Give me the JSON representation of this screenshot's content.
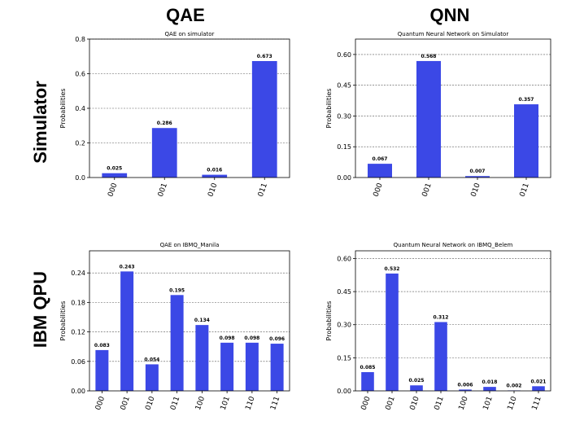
{
  "column_headers": [
    "QAE",
    "QNN"
  ],
  "row_headers": [
    "Simulator",
    "IBM QPU"
  ],
  "bar_color": "#3b48e6",
  "chart_data": [
    {
      "type": "bar",
      "title": "QAE on simulator",
      "ylabel": "Probabilities",
      "categories": [
        "000",
        "001",
        "010",
        "011"
      ],
      "values": [
        0.025,
        0.286,
        0.016,
        0.673
      ],
      "value_labels": [
        "0.025",
        "0.286",
        "0.016",
        "0.673"
      ],
      "ylim": [
        0,
        0.8
      ],
      "yticks": [
        0,
        0.2,
        0.4,
        0.6,
        0.8
      ],
      "ytick_labels": [
        "0.0",
        "0.2",
        "0.4",
        "0.6",
        "0.8"
      ],
      "grid": true
    },
    {
      "type": "bar",
      "title": "Quantum Neural Network on Simulator",
      "ylabel": "Probabilities",
      "categories": [
        "000",
        "001",
        "010",
        "011"
      ],
      "values": [
        0.067,
        0.568,
        0.007,
        0.357
      ],
      "value_labels": [
        "0.067",
        "0.568",
        "0.007",
        "0.357"
      ],
      "ylim": [
        0,
        0.675
      ],
      "yticks": [
        0,
        0.15,
        0.3,
        0.45,
        0.6
      ],
      "ytick_labels": [
        "0.00",
        "0.15",
        "0.30",
        "0.45",
        "0.60"
      ],
      "grid": true
    },
    {
      "type": "bar",
      "title": "QAE on IBMQ_Manila",
      "ylabel": "Probabilities",
      "categories": [
        "000",
        "001",
        "010",
        "011",
        "100",
        "101",
        "110",
        "111"
      ],
      "values": [
        0.083,
        0.243,
        0.054,
        0.195,
        0.134,
        0.098,
        0.098,
        0.096
      ],
      "value_labels": [
        "0.083",
        "0.243",
        "0.054",
        "0.195",
        "0.134",
        "0.098",
        "0.098",
        "0.096"
      ],
      "ylim": [
        0,
        0.285
      ],
      "yticks": [
        0,
        0.06,
        0.12,
        0.18,
        0.24
      ],
      "ytick_labels": [
        "0.00",
        "0.06",
        "0.12",
        "0.18",
        "0.24"
      ],
      "grid": true
    },
    {
      "type": "bar",
      "title": "Quantum Neural Network on IBMQ_Belem",
      "ylabel": "Probabilities",
      "categories": [
        "000",
        "001",
        "010",
        "011",
        "100",
        "101",
        "110",
        "111"
      ],
      "values": [
        0.085,
        0.532,
        0.025,
        0.312,
        0.006,
        0.018,
        0.002,
        0.021
      ],
      "value_labels": [
        "0.085",
        "0.532",
        "0.025",
        "0.312",
        "0.006",
        "0.018",
        "0.002",
        "0.021"
      ],
      "ylim": [
        0,
        0.635
      ],
      "yticks": [
        0,
        0.15,
        0.3,
        0.45,
        0.6
      ],
      "ytick_labels": [
        "0.00",
        "0.15",
        "0.30",
        "0.45",
        "0.60"
      ],
      "grid": true
    }
  ]
}
